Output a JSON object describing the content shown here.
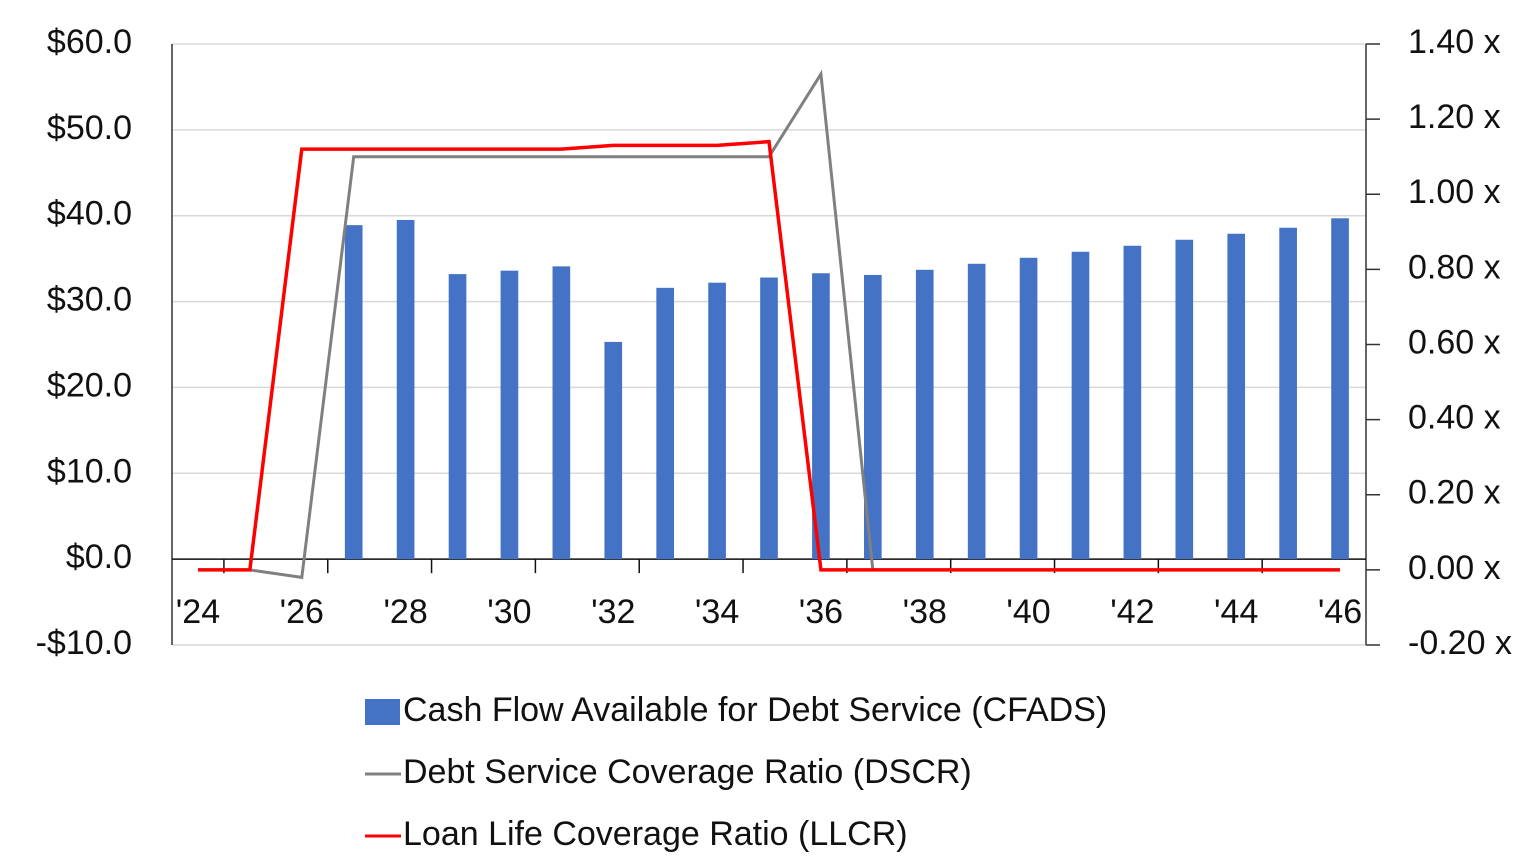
{
  "chart_data": {
    "type": "bar",
    "categories": [
      "'24",
      null,
      "'26",
      null,
      "'28",
      null,
      "'30",
      null,
      "'32",
      null,
      "'34",
      null,
      "'36",
      null,
      "'38",
      null,
      "'40",
      null,
      "'42",
      null,
      "'44",
      null,
      "'46"
    ],
    "series": [
      {
        "name": "Cash Flow Available for Debt Service (CFADS)",
        "type": "bar",
        "color": "#4472c4",
        "values": [
          0,
          0,
          0,
          38.9,
          39.5,
          33.2,
          33.6,
          34.1,
          25.3,
          31.6,
          32.2,
          32.8,
          33.3,
          33.1,
          33.7,
          34.4,
          35.1,
          35.8,
          36.5,
          37.2,
          37.9,
          38.6,
          39.7
        ]
      },
      {
        "name": "Debt Service Coverage Ratio (DSCR)",
        "type": "line",
        "axis": "y2",
        "color": "#808080",
        "values": [
          0,
          0,
          -0.02,
          1.1,
          1.1,
          1.1,
          1.1,
          1.1,
          1.1,
          1.1,
          1.1,
          1.1,
          1.32,
          0,
          0,
          0,
          0,
          0,
          0,
          0,
          0,
          0,
          0
        ]
      },
      {
        "name": "Loan Life Coverage Ratio (LLCR)",
        "type": "line",
        "axis": "y2",
        "color": "#ff0000",
        "values": [
          0,
          0,
          1.12,
          1.12,
          1.12,
          1.12,
          1.12,
          1.12,
          1.13,
          1.13,
          1.13,
          1.14,
          0,
          0,
          0,
          0,
          0,
          0,
          0,
          0,
          0,
          0,
          0
        ]
      }
    ],
    "ylim": [
      -10,
      60
    ],
    "yticks": [
      {
        "value": -10,
        "label": "-$10.0"
      },
      {
        "value": 0,
        "label": "$0.0"
      },
      {
        "value": 10,
        "label": "$10.0"
      },
      {
        "value": 20,
        "label": "$20.0"
      },
      {
        "value": 30,
        "label": "$30.0"
      },
      {
        "value": 40,
        "label": "$40.0"
      },
      {
        "value": 50,
        "label": "$50.0"
      },
      {
        "value": 60,
        "label": "$60.0"
      }
    ],
    "y2lim": [
      -0.2,
      1.4
    ],
    "y2ticks": [
      {
        "value": -0.2,
        "label": "-0.20 x"
      },
      {
        "value": 0,
        "label": "0.00 x"
      },
      {
        "value": 0.2,
        "label": "0.20 x"
      },
      {
        "value": 0.4,
        "label": "0.40 x"
      },
      {
        "value": 0.6,
        "label": "0.60 x"
      },
      {
        "value": 0.8,
        "label": "0.80 x"
      },
      {
        "value": 1,
        "label": "1.00 x"
      },
      {
        "value": 1.2,
        "label": "1.20 x"
      },
      {
        "value": 1.4,
        "label": "1.40 x"
      }
    ],
    "grid": true,
    "legend": "bottom"
  }
}
